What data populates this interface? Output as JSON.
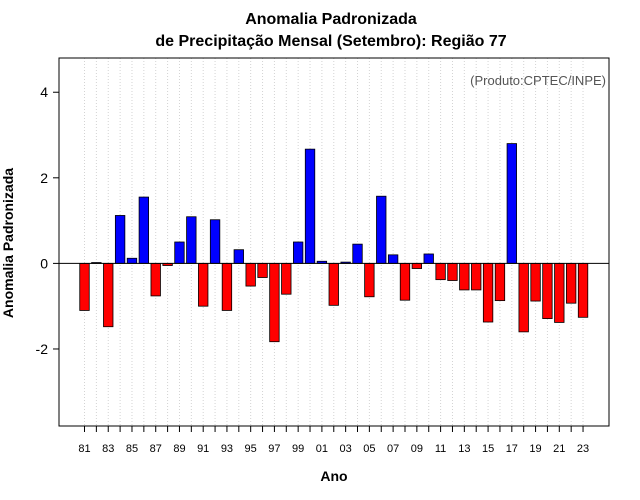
{
  "chart_data": {
    "type": "bar",
    "title_line1": "Anomalia Padronizada",
    "title_line2": "de Precipitação Mensal (Setembro): Região 77",
    "xlabel": "Ano",
    "ylabel": "Anomalia Padronizada",
    "credit": "(Produto:CPTEC/INPE)",
    "ylim": [
      -3.8,
      4.8
    ],
    "yticks": [
      "-2",
      "0",
      "2",
      "4"
    ],
    "ytick_values": [
      -2,
      0,
      2,
      4
    ],
    "categories": [
      "81",
      "82",
      "83",
      "84",
      "85",
      "86",
      "87",
      "88",
      "89",
      "90",
      "91",
      "92",
      "93",
      "94",
      "95",
      "96",
      "97",
      "98",
      "99",
      "00",
      "01",
      "02",
      "03",
      "04",
      "05",
      "06",
      "07",
      "08",
      "09",
      "10",
      "11",
      "12",
      "13",
      "14",
      "15",
      "16",
      "17",
      "18",
      "19",
      "20",
      "21",
      "22",
      "23"
    ],
    "xtick_labels": [
      "81",
      "83",
      "85",
      "87",
      "89",
      "91",
      "93",
      "95",
      "97",
      "99",
      "01",
      "03",
      "05",
      "07",
      "09",
      "11",
      "13",
      "15",
      "17",
      "19",
      "21",
      "23"
    ],
    "values": [
      -1.1,
      0.02,
      -1.48,
      1.12,
      0.12,
      1.55,
      -0.76,
      -0.05,
      0.5,
      1.09,
      -1.0,
      1.02,
      -1.1,
      0.32,
      -0.53,
      -0.33,
      -1.83,
      -0.72,
      0.5,
      2.67,
      0.05,
      -0.98,
      0.03,
      0.45,
      -0.78,
      1.57,
      0.2,
      -0.86,
      -0.12,
      0.22,
      -0.38,
      -0.4,
      -0.62,
      -0.62,
      -1.37,
      -0.87,
      2.8,
      -1.6,
      -0.88,
      -1.29,
      -1.38,
      -0.93,
      -1.26
    ],
    "colors": {
      "positive": "#0000ff",
      "negative": "#ff0000",
      "grid": "#d3d3d3",
      "frame": "#000000"
    }
  }
}
